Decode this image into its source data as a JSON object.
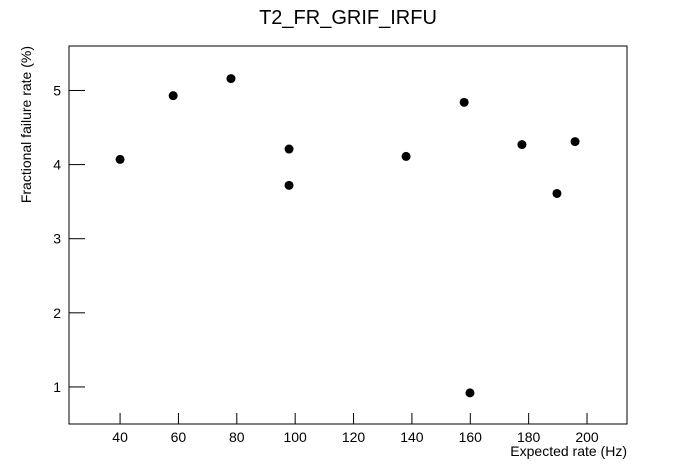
{
  "chart_data": {
    "type": "scatter",
    "title": "T2_FR_GRIF_IRFU",
    "x_label": "Expected rate (Hz)",
    "y_label": "Fractional failure rate (%)",
    "x": [
      40,
      58.2,
      78,
      97.9,
      97.9,
      138,
      157.9,
      159.9,
      177.7,
      189.7,
      195.9
    ],
    "y": [
      4.07,
      4.93,
      5.16,
      4.21,
      3.72,
      4.11,
      4.84,
      0.92,
      4.27,
      3.61,
      4.31
    ],
    "color": "#000000",
    "xlim": [
      22.5,
      213.7
    ],
    "ylim": [
      0.5,
      5.6
    ],
    "xticks": [
      40,
      60,
      80,
      100,
      120,
      140,
      160,
      180,
      200
    ],
    "yticks": [
      1,
      2,
      3,
      4,
      5
    ]
  }
}
